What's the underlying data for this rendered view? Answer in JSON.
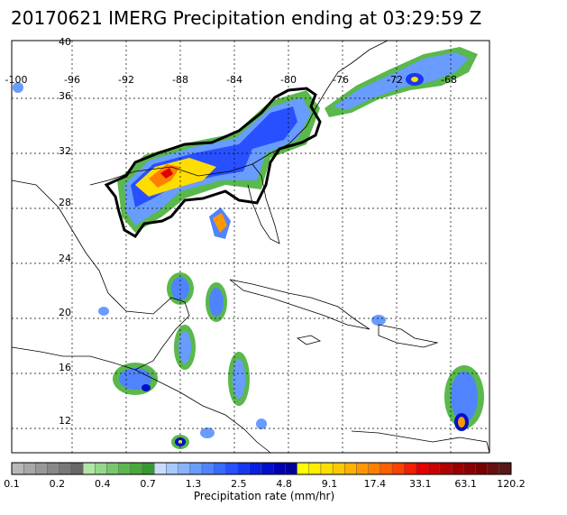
{
  "title": "20170621 IMERG Precipitation ending at 03:29:59 Z",
  "map": {
    "lon_labels": [
      "-100",
      "-96",
      "-92",
      "-88",
      "-84",
      "-80",
      "-76",
      "-72",
      "-68"
    ],
    "lat_labels": [
      "40",
      "36",
      "32",
      "28",
      "24",
      "20",
      "16",
      "12"
    ]
  },
  "colorbar": {
    "title": "Precipitation rate (mm/hr)",
    "tick_labels": [
      "0.1",
      "0.2",
      "0.4",
      "0.7",
      "1.3",
      "2.5",
      "4.8",
      "9.1",
      "17.4",
      "33.1",
      "63.1",
      "120.2"
    ],
    "colors": [
      "#b8b8b8",
      "#a8a8a8",
      "#989898",
      "#888888",
      "#787878",
      "#686868",
      "#b2e6a8",
      "#96d88a",
      "#78c86a",
      "#5ab84c",
      "#48a83c",
      "#389830",
      "#c8dcff",
      "#a8c8ff",
      "#88b4ff",
      "#689cff",
      "#5084ff",
      "#386cff",
      "#2850ff",
      "#1838f0",
      "#0820e0",
      "#0010c8",
      "#0000b0",
      "#000098",
      "#ffff00",
      "#ffee00",
      "#ffdd00",
      "#ffc800",
      "#ffb000",
      "#ff9800",
      "#ff8000",
      "#ff6000",
      "#ff4000",
      "#f02000",
      "#e00000",
      "#c80000",
      "#b00000",
      "#980000",
      "#880000",
      "#780000",
      "#681010",
      "#581818"
    ]
  }
}
